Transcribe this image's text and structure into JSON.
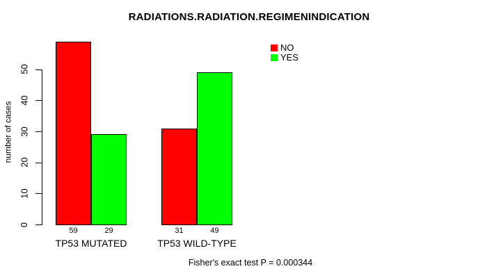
{
  "title": "RADIATIONS.RADIATION.REGIMENINDICATION",
  "y_axis": {
    "label": "number of cases",
    "ticks": [
      0,
      10,
      20,
      30,
      40,
      50
    ]
  },
  "legend": {
    "items": [
      {
        "label": "NO",
        "color": "#FF0000"
      },
      {
        "label": "YES",
        "color": "#00FF00"
      }
    ]
  },
  "caption": "Fisher's exact test P = 0.000344",
  "colors": {
    "no": "#FF0000",
    "yes": "#00FF00",
    "axis": "#000000",
    "background": "#FFFFFF"
  },
  "chart_data": {
    "type": "bar",
    "title": "RADIATIONS.RADIATION.REGIMENINDICATION",
    "xlabel": "",
    "ylabel": "number of cases",
    "categories": [
      "TP53 MUTATED",
      "TP53 WILD-TYPE"
    ],
    "series": [
      {
        "name": "NO",
        "color": "#FF0000",
        "values": [
          59,
          31
        ]
      },
      {
        "name": "YES",
        "color": "#00FF00",
        "values": [
          29,
          49
        ]
      }
    ],
    "bar_value_labels": [
      [
        59,
        29
      ],
      [
        31,
        49
      ]
    ],
    "yticks": [
      0,
      10,
      20,
      30,
      40,
      50
    ],
    "ylim": [
      0,
      50
    ],
    "grid": false,
    "legend_position": "top-right",
    "annotation": "Fisher's exact test P = 0.000344"
  }
}
